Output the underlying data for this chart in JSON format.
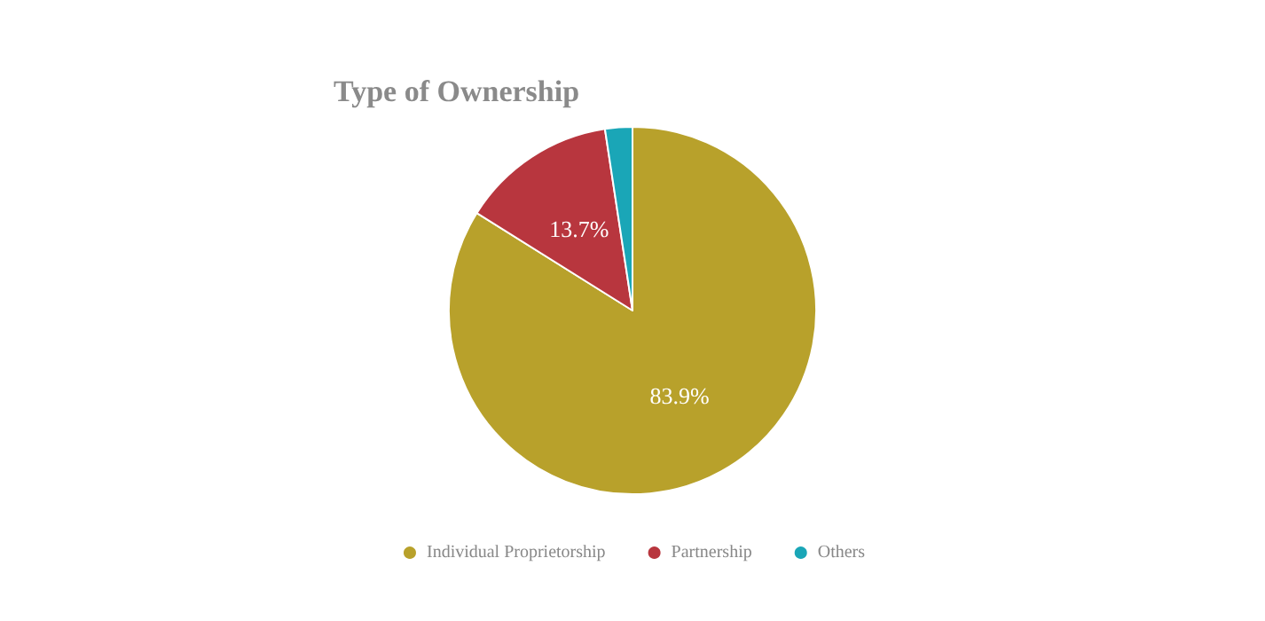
{
  "chart_data": {
    "type": "pie",
    "title": "Type of Ownership",
    "categories": [
      "Individual Proprietorship",
      "Partnership",
      "Others"
    ],
    "values": [
      83.9,
      13.7,
      2.4
    ],
    "colors": [
      "#b8a12b",
      "#b8363e",
      "#1aa6b7"
    ],
    "value_labels": [
      "83.9%",
      "13.7%",
      null
    ],
    "legend": "bottom"
  }
}
